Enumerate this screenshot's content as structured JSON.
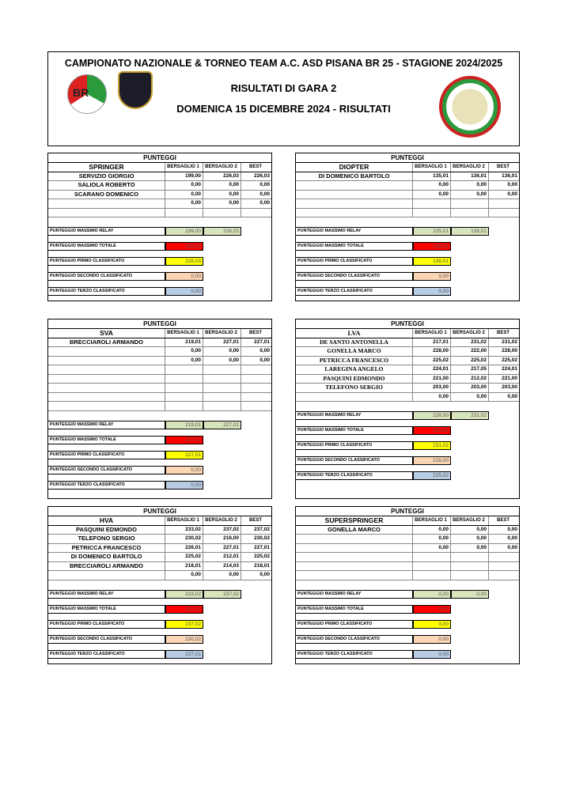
{
  "header": {
    "title": "CAMPIONATO NAZIONALE & TORNEO TEAM A.C. ASD PISANA BR 25 - STAGIONE 2024/2025",
    "subtitle": "RISULTATI DI GARA 2",
    "date": "DOMENICA 15 DICEMBRE 2024 - RISULTATI",
    "logo_left_text": "BR ITALIA",
    "logo_mid_text": "C.O.N.I. A.S.D. T.A.V. PISANA ROMA"
  },
  "colors": {
    "relay": "#d8e4bc",
    "totale": "#ff0000",
    "primo": "#ffff00",
    "secondo": "#fcd5b4",
    "terzo": "#b8cce4"
  },
  "summary_labels": [
    "PUNTEGGIO MASSIMO RELAY",
    "PUNTEGGIO MASSIMO TOTALE",
    "PUNTEGGIO PRIMO CLASSIFICATO",
    "PUNTEGGIO SECONDO CLASSIFICATO",
    "PUNTEGGIO TERZO CLASSIFICATO"
  ],
  "col_headers": [
    "BERSAGLIO 1",
    "BERSAGLIO 2",
    "BEST"
  ],
  "panels": [
    {
      "title": "PUNTEGGI",
      "category": "SPRINGER",
      "rows": [
        [
          "SERVIZIO GIORGIO",
          "199,00",
          "226,03",
          "226,03"
        ],
        [
          "SALIOLA ROBERTO",
          "0,00",
          "0,00",
          "0,00"
        ],
        [
          "SCARANO DOMENICO",
          "0,00",
          "0,00",
          "0,00"
        ],
        [
          "",
          "0,00",
          "0,00",
          "0,00"
        ],
        [
          "",
          "",
          "",
          ""
        ]
      ],
      "relay": [
        "199,00",
        "226,03"
      ],
      "totale": "226,03",
      "primo": "226,03",
      "secondo": "0,00",
      "terzo": "0,00"
    },
    {
      "title": "PUNTEGGI",
      "category": "DIOPTER",
      "rows": [
        [
          "DI DOMENICO BARTOLO",
          "135,01",
          "136,01",
          "136,01"
        ],
        [
          "",
          "0,00",
          "0,00",
          "0,00"
        ],
        [
          "",
          "0,00",
          "0,00",
          "0,00"
        ],
        [
          "",
          "",
          "",
          ""
        ],
        [
          "",
          "",
          "",
          ""
        ]
      ],
      "relay": [
        "135,01",
        "136,01"
      ],
      "totale": "136,01",
      "primo": "136,01",
      "secondo": "0,00",
      "terzo": "0,00"
    },
    {
      "title": "PUNTEGGI",
      "category": "SVA",
      "rows": [
        [
          "BRECCIAROLI ARMANDO",
          "219,01",
          "227,01",
          "227,01"
        ],
        [
          "",
          "0,00",
          "0,00",
          "0,00"
        ],
        [
          "",
          "0,00",
          "0,00",
          "0,00"
        ],
        [
          "",
          "",
          "",
          ""
        ],
        [
          "",
          "",
          "",
          ""
        ],
        [
          "",
          "",
          "",
          ""
        ],
        [
          "",
          "",
          "",
          ""
        ],
        [
          "",
          "",
          "",
          ""
        ]
      ],
      "relay": [
        "219,01",
        "227,01"
      ],
      "totale": "227,01",
      "primo": "227,01",
      "secondo": "0,00",
      "terzo": "0,00"
    },
    {
      "title": "PUNTEGGI",
      "category": "LVA",
      "rows": [
        [
          "DE SANTO ANTONELLA",
          "217,01",
          "231,02",
          "231,02"
        ],
        [
          "GONELLA MARCO",
          "228,00",
          "222,00",
          "228,00"
        ],
        [
          "PETRICCA FRANCESCO",
          "225,02",
          "225,02",
          "225,02"
        ],
        [
          "LAREGINA ANGELO",
          "224,01",
          "217,05",
          "224,01"
        ],
        [
          "PASQUINI EDMONDO",
          "221,00",
          "212,02",
          "221,00"
        ],
        [
          "TELEFONO SERGIO",
          "203,00",
          "203,00",
          "203,00"
        ],
        [
          "",
          "0,00",
          "0,00",
          "0,00"
        ]
      ],
      "relay": [
        "228,00",
        "231,02"
      ],
      "totale": "231,02",
      "primo": "231,02",
      "secondo": "228,00",
      "terzo": "225,02"
    },
    {
      "title": "PUNTEGGI",
      "category": "HVA",
      "rows": [
        [
          "PASQUINI EDMONDO",
          "233,02",
          "237,02",
          "237,02"
        ],
        [
          "TELEFONO SERGIO",
          "230,02",
          "216,00",
          "230,02"
        ],
        [
          "PETRICCA FRANCESCO",
          "226,01",
          "227,01",
          "227,01"
        ],
        [
          "DI DOMENICO BARTOLO",
          "225,02",
          "212,01",
          "225,02"
        ],
        [
          "BRECCIAROLI ARMANDO",
          "218,01",
          "214,03",
          "218,01"
        ],
        [
          "",
          "0,00",
          "0,00",
          "0,00"
        ]
      ],
      "relay": [
        "233,02",
        "237,02"
      ],
      "totale": "237,02",
      "primo": "237,02",
      "secondo": "230,02",
      "terzo": "227,01"
    },
    {
      "title": "PUNTEGGI",
      "category": "SUPERSPRINGER",
      "rows": [
        [
          "GONELLA MARCO",
          "0,00",
          "0,00",
          "0,00"
        ],
        [
          "",
          "0,00",
          "0,00",
          "0,00"
        ],
        [
          "",
          "0,00",
          "0,00",
          "0,00"
        ],
        [
          "",
          "",
          "",
          ""
        ],
        [
          "",
          "",
          "",
          ""
        ],
        [
          "",
          "",
          "",
          ""
        ]
      ],
      "relay": [
        "0,00",
        "0,00"
      ],
      "totale": "0,00",
      "primo": "0,00",
      "secondo": "0,00",
      "terzo": "0,00"
    }
  ]
}
